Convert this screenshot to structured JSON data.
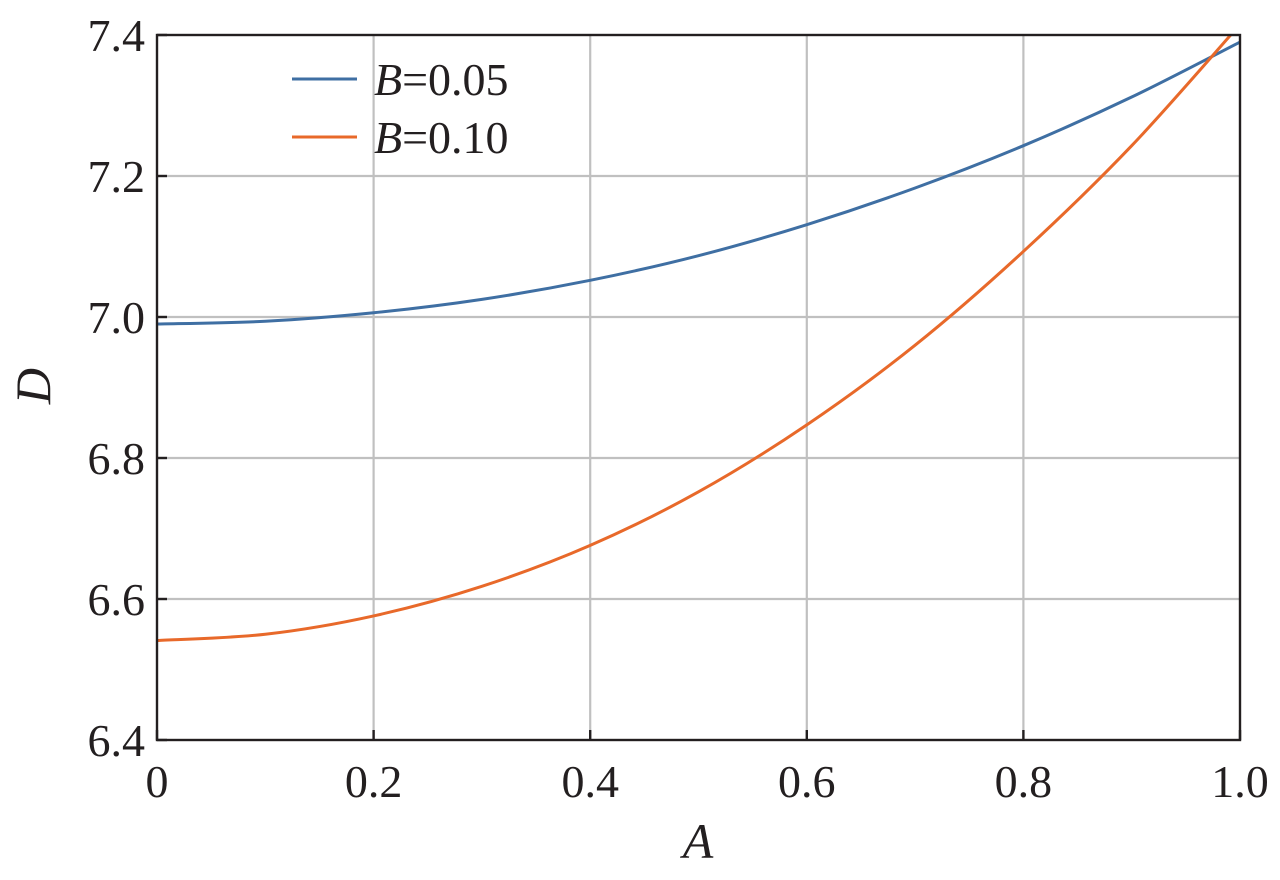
{
  "chart_data": {
    "type": "line",
    "title": "",
    "xlabel": "A",
    "ylabel": "D",
    "xlim": [
      0,
      1.0
    ],
    "ylim": [
      6.4,
      7.4
    ],
    "xticks": [
      0,
      0.2,
      0.4,
      0.6,
      0.8,
      1.0
    ],
    "xtick_labels": [
      "0",
      "0.2",
      "0.4",
      "0.6",
      "0.8",
      "1.0"
    ],
    "yticks": [
      6.4,
      6.6,
      6.8,
      7.0,
      7.2,
      7.4
    ],
    "ytick_labels": [
      "6.4",
      "6.6",
      "6.8",
      "7.0",
      "7.2",
      "7.4"
    ],
    "grid": true,
    "legend_position": "top-left",
    "x": [
      0,
      0.1,
      0.2,
      0.3,
      0.4,
      0.5,
      0.6,
      0.7,
      0.8,
      0.9,
      1.0
    ],
    "series": [
      {
        "name_var": "B",
        "name_value": "=0.05",
        "color": "#3f6fa3",
        "values": [
          6.99,
          6.994,
          7.006,
          7.025,
          7.052,
          7.087,
          7.131,
          7.183,
          7.243,
          7.312,
          7.39
        ]
      },
      {
        "name_var": "B",
        "name_value": "=0.10",
        "color": "#e8692a",
        "values": [
          6.541,
          6.55,
          6.576,
          6.618,
          6.676,
          6.752,
          6.847,
          6.96,
          7.093,
          7.243,
          7.415
        ]
      }
    ]
  }
}
